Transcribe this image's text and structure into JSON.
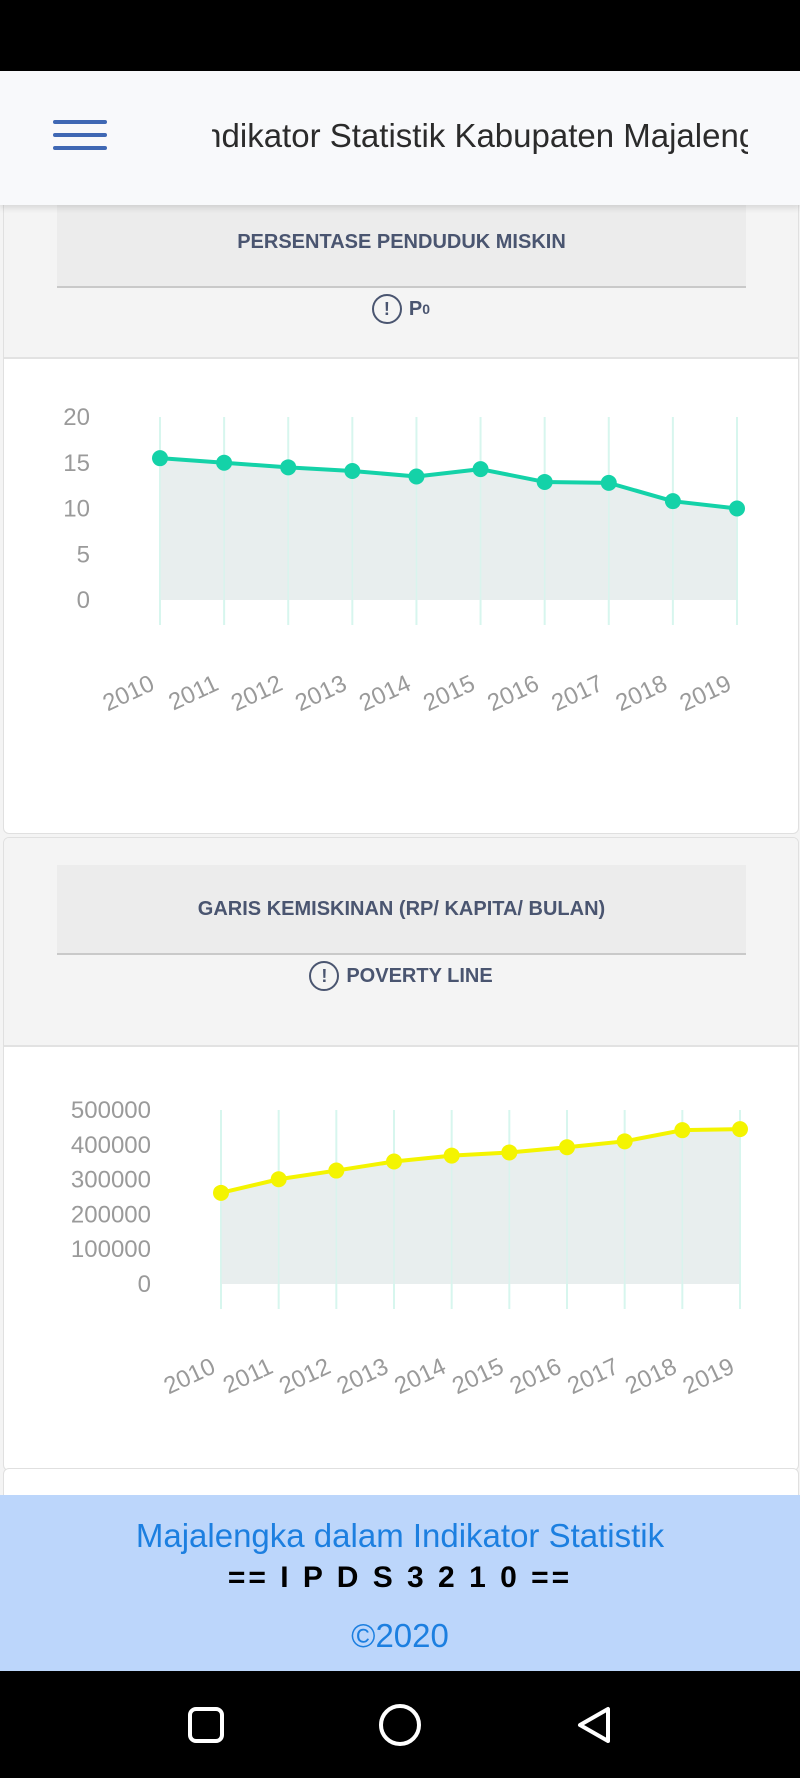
{
  "header": {
    "title": "Indikator Statistik Kabupaten Majalengka"
  },
  "cards": [
    {
      "title": "PERSENTASE PENDUDUK MISKIN",
      "subtitle": "P",
      "subtitle_sub": "0"
    },
    {
      "title": "GARIS KEMISKINAN (RP/ KAPITA/ BULAN)",
      "subtitle": "POVERTY LINE"
    }
  ],
  "chart_data": [
    {
      "type": "area",
      "title": "PERSENTASE PENDUDUK MISKIN",
      "categories": [
        "2010",
        "2011",
        "2012",
        "2013",
        "2014",
        "2015",
        "2016",
        "2017",
        "2018",
        "2019"
      ],
      "series": [
        {
          "values": [
            15.5,
            15.0,
            14.5,
            14.1,
            13.5,
            14.3,
            12.9,
            12.8,
            10.8,
            10.0
          ]
        }
      ],
      "yticks": [
        "0",
        "5",
        "10",
        "15",
        "20"
      ],
      "ylim": [
        0,
        20
      ],
      "line_color": "#14d2a8",
      "fill_color": "#e6ecec",
      "grid_color": "#d7f6ee"
    },
    {
      "type": "area",
      "title": "GARIS KEMISKINAN (RP/ KAPITA/ BULAN)",
      "categories": [
        "2010",
        "2011",
        "2012",
        "2013",
        "2014",
        "2015",
        "2016",
        "2017",
        "2018",
        "2019"
      ],
      "series": [
        {
          "values": [
            262000,
            301000,
            326000,
            352000,
            369000,
            378000,
            393000,
            410000,
            442000,
            445000
          ]
        }
      ],
      "yticks": [
        "0",
        "100000",
        "200000",
        "300000",
        "400000",
        "500000"
      ],
      "ylim": [
        0,
        500000
      ],
      "line_color": "#f4f400",
      "fill_color": "#e6ecec",
      "grid_color": "#d7f6ee"
    }
  ],
  "footer": {
    "title": "Majalengka dalam Indikator Statistik",
    "code": "== I P D S 3 2 1 0 ==",
    "copyright": "©2020"
  },
  "nav": {
    "icons": [
      "square-recents-icon",
      "circle-home-icon",
      "triangle-back-icon"
    ]
  }
}
